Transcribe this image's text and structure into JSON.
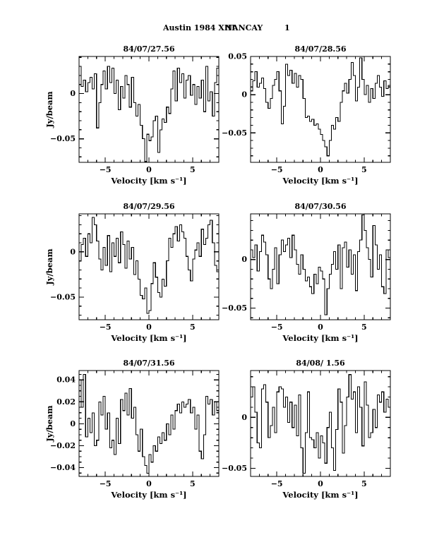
{
  "document": {
    "header": {
      "title": "Austin 1984 XIII",
      "instrument": "NANCAY",
      "page_number": "1"
    }
  },
  "chart_data": [
    {
      "type": "line",
      "style": "histogram-step",
      "title": "84/07/27.56",
      "xlabel": "Velocity [km s⁻¹]",
      "ylabel": "Jy/beam",
      "x_start": -8,
      "dx": 0.25,
      "xlim": [
        -8,
        8
      ],
      "ylim": [
        -0.076,
        0.041
      ],
      "xticks": [
        [
          -5,
          "−5"
        ],
        [
          0,
          "0"
        ],
        [
          5,
          "5"
        ]
      ],
      "xtick_minor": 1,
      "yticks": [
        [
          0,
          "0"
        ],
        [
          -0.05,
          "−0.05"
        ]
      ],
      "ytick_minor": 0.01,
      "values": [
        0.03,
        0.008,
        0.015,
        0.002,
        0.012,
        0.018,
        0.005,
        0.022,
        -0.038,
        -0.01,
        0.01,
        0.025,
        0.005,
        0.03,
        0.012,
        0.028,
        0.0,
        0.015,
        -0.018,
        0.008,
        -0.005,
        0.02,
        0.01,
        -0.015,
        0.018,
        -0.01,
        -0.025,
        -0.012,
        -0.035,
        -0.05,
        -0.075,
        -0.045,
        -0.052,
        -0.048,
        -0.03,
        -0.025,
        -0.065,
        -0.04,
        -0.028,
        -0.032,
        -0.015,
        -0.022,
        0.005,
        0.025,
        -0.008,
        0.028,
        0.012,
        0.022,
        -0.005,
        0.015,
        0.02,
        -0.002,
        0.01,
        -0.012,
        0.008,
        -0.005,
        0.015,
        -0.02,
        0.03,
        -0.008,
        0.002,
        -0.025,
        0.012,
        0.028
      ]
    },
    {
      "type": "line",
      "style": "histogram-step",
      "title": "84/07/28.56",
      "xlabel": "Velocity [km s⁻¹]",
      "ylabel": "",
      "x_start": -8,
      "dx": 0.25,
      "xlim": [
        -8,
        8
      ],
      "ylim": [
        -0.0885,
        0.05
      ],
      "xticks": [
        [
          -5,
          "−5"
        ],
        [
          0,
          "0"
        ],
        [
          5,
          "5"
        ]
      ],
      "xtick_minor": 1,
      "yticks": [
        [
          0.05,
          "0.05"
        ],
        [
          0,
          "0"
        ],
        [
          -0.05,
          "−0.05"
        ]
      ],
      "ytick_minor": 0.01,
      "values": [
        0.005,
        0.018,
        0.03,
        0.01,
        0.015,
        0.022,
        0.008,
        -0.01,
        -0.018,
        -0.005,
        0.012,
        0.02,
        0.03,
        0.005,
        -0.038,
        -0.015,
        0.04,
        0.025,
        0.032,
        0.015,
        0.028,
        0.01,
        0.025,
        0.02,
        -0.005,
        -0.03,
        -0.028,
        -0.035,
        -0.032,
        -0.04,
        -0.038,
        -0.045,
        -0.052,
        -0.06,
        -0.068,
        -0.08,
        -0.06,
        -0.04,
        -0.045,
        -0.03,
        -0.035,
        -0.01,
        0.005,
        0.015,
        0.002,
        0.02,
        0.042,
        0.025,
        -0.008,
        0.01,
        0.048,
        0.02,
        0.0,
        0.012,
        -0.01,
        0.008,
        -0.005,
        0.015,
        0.025,
        0.01,
        -0.002,
        0.018,
        0.008,
        0.012
      ]
    },
    {
      "type": "line",
      "style": "histogram-step",
      "title": "84/07/29.56",
      "xlabel": "Velocity [km s⁻¹]",
      "ylabel": "Jy/beam",
      "x_start": -8,
      "dx": 0.25,
      "xlim": [
        -8,
        8
      ],
      "ylim": [
        -0.075,
        0.042
      ],
      "xticks": [
        [
          -5,
          "−5"
        ],
        [
          0,
          "0"
        ],
        [
          5,
          "5"
        ]
      ],
      "xtick_minor": 1,
      "yticks": [
        [
          0,
          "0"
        ],
        [
          -0.05,
          "−0.05"
        ]
      ],
      "ytick_minor": 0.01,
      "values": [
        -0.01,
        0.008,
        0.015,
        -0.005,
        0.02,
        0.01,
        0.038,
        0.03,
        0.012,
        -0.008,
        -0.02,
        0.005,
        -0.015,
        0.018,
        -0.022,
        0.01,
        -0.005,
        0.015,
        -0.012,
        0.022,
        0.008,
        -0.018,
        0.012,
        -0.008,
        0.005,
        -0.025,
        -0.01,
        -0.03,
        -0.048,
        -0.052,
        -0.04,
        -0.068,
        -0.065,
        -0.035,
        -0.012,
        -0.028,
        -0.045,
        -0.05,
        -0.03,
        -0.038,
        -0.01,
        0.015,
        0.005,
        0.02,
        0.028,
        0.012,
        0.03,
        0.022,
        0.015,
        -0.005,
        -0.02,
        -0.032,
        -0.008,
        0.002,
        0.01,
        -0.005,
        0.025,
        0.008,
        0.015,
        0.03,
        0.035,
        0.01,
        -0.015,
        -0.022
      ]
    },
    {
      "type": "line",
      "style": "histogram-step",
      "title": "84/07/30.56",
      "xlabel": "Velocity [km s⁻¹]",
      "ylabel": "",
      "x_start": -8,
      "dx": 0.25,
      "xlim": [
        -8,
        8
      ],
      "ylim": [
        -0.062,
        0.047
      ],
      "xticks": [
        [
          -5,
          "−5"
        ],
        [
          0,
          "0"
        ],
        [
          5,
          "5"
        ]
      ],
      "xtick_minor": 1,
      "yticks": [
        [
          0,
          "0"
        ],
        [
          -0.05,
          "−0.05"
        ]
      ],
      "ytick_minor": 0.01,
      "values": [
        0.01,
        0.002,
        0.015,
        -0.012,
        0.008,
        0.025,
        0.018,
        0.005,
        -0.02,
        -0.03,
        -0.01,
        0.012,
        -0.025,
        0.005,
        0.02,
        0.008,
        0.015,
        0.022,
        0.002,
        0.025,
        0.01,
        -0.005,
        -0.015,
        0.005,
        -0.01,
        -0.022,
        -0.018,
        -0.028,
        -0.035,
        -0.015,
        -0.025,
        -0.008,
        -0.012,
        -0.02,
        -0.057,
        -0.03,
        -0.015,
        -0.005,
        0.008,
        -0.01,
        0.015,
        -0.03,
        0.012,
        0.018,
        -0.008,
        0.01,
        -0.015,
        0.005,
        -0.032,
        0.008,
        0.02,
        0.046,
        0.03,
        0.012,
        0.0,
        -0.018,
        0.035,
        0.015,
        -0.01,
        0.005,
        -0.028,
        -0.035,
        0.01,
        0.002
      ]
    },
    {
      "type": "line",
      "style": "histogram-step",
      "title": "84/07/31.56",
      "xlabel": "Velocity [km s⁻¹]",
      "ylabel": "Jy/beam",
      "x_start": -8,
      "dx": 0.25,
      "xlim": [
        -8,
        8
      ],
      "ylim": [
        -0.048,
        0.0485
      ],
      "xticks": [
        [
          -5,
          "−5"
        ],
        [
          0,
          "0"
        ],
        [
          5,
          "5"
        ]
      ],
      "xtick_minor": 1,
      "yticks": [
        [
          0.04,
          "0.04"
        ],
        [
          0.02,
          "0.02"
        ],
        [
          0,
          "0"
        ],
        [
          -0.02,
          "−0.02"
        ],
        [
          -0.04,
          "−0.04"
        ]
      ],
      "ytick_minor": 0.005,
      "values": [
        0.04,
        0.015,
        0.045,
        -0.012,
        0.005,
        -0.008,
        0.01,
        -0.02,
        -0.015,
        0.02,
        0.008,
        0.025,
        -0.005,
        0.01,
        -0.022,
        -0.015,
        -0.028,
        0.005,
        -0.018,
        0.022,
        0.012,
        0.028,
        0.008,
        0.032,
        0.005,
        0.015,
        -0.01,
        -0.025,
        -0.005,
        -0.03,
        -0.038,
        -0.045,
        -0.028,
        -0.035,
        -0.02,
        -0.025,
        -0.012,
        -0.018,
        -0.008,
        -0.015,
        0.0,
        -0.01,
        0.008,
        -0.005,
        0.012,
        0.018,
        0.01,
        0.02,
        0.015,
        0.018,
        0.022,
        0.01,
        0.015,
        -0.005,
        0.008,
        -0.025,
        -0.032,
        -0.01,
        0.025,
        0.018,
        0.022,
        0.008,
        0.02,
        0.012
      ]
    },
    {
      "type": "line",
      "style": "histogram-step",
      "title": "84/08/ 1.56",
      "xlabel": "Velocity [km s⁻¹]",
      "ylabel": "",
      "x_start": -8,
      "dx": 0.25,
      "xlim": [
        -8,
        8
      ],
      "ylim": [
        -0.058,
        0.046
      ],
      "xticks": [
        [
          -5,
          "−5"
        ],
        [
          0,
          "0"
        ],
        [
          5,
          "5"
        ]
      ],
      "xtick_minor": 1,
      "yticks": [
        [
          0,
          "0"
        ],
        [
          -0.05,
          "−0.05"
        ]
      ],
      "ytick_minor": 0.01,
      "values": [
        0.02,
        0.03,
        0.005,
        -0.025,
        -0.03,
        0.028,
        0.032,
        0.015,
        -0.02,
        -0.008,
        0.01,
        -0.015,
        0.025,
        0.03,
        0.028,
        0.01,
        0.02,
        -0.005,
        0.015,
        -0.01,
        0.012,
        -0.018,
        0.022,
        -0.03,
        -0.055,
        -0.015,
        0.025,
        -0.02,
        -0.022,
        -0.03,
        -0.015,
        -0.04,
        -0.018,
        -0.025,
        -0.045,
        -0.01,
        0.005,
        -0.03,
        -0.052,
        -0.012,
        0.028,
        0.015,
        -0.035,
        -0.008,
        0.02,
        0.042,
        0.018,
        0.025,
        -0.015,
        0.03,
        0.01,
        -0.028,
        0.035,
        0.012,
        -0.02,
        -0.015,
        0.008,
        -0.01,
        0.022,
        0.015,
        0.025,
        0.005,
        0.018,
        0.01
      ]
    }
  ]
}
